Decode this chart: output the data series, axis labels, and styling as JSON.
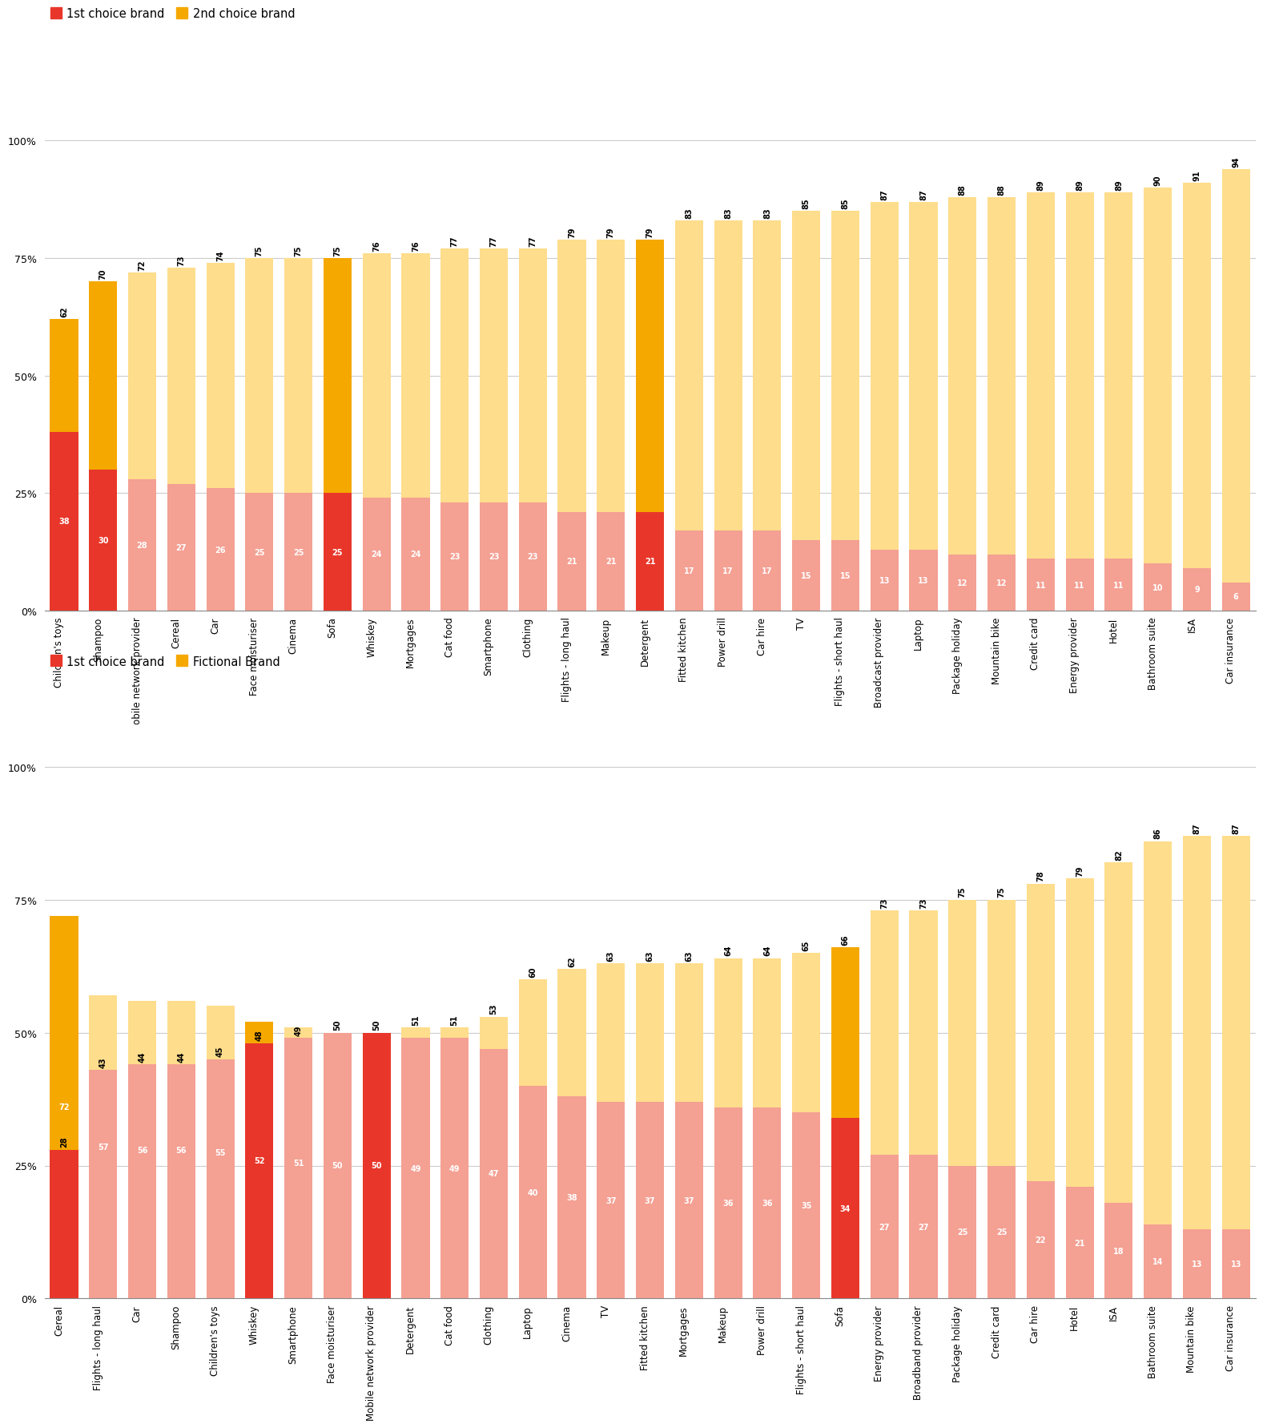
{
  "chart1": {
    "categories": [
      "Children's toys",
      "Shampoo",
      "Mobile network provider",
      "Cereal",
      "Car",
      "Face moisturiser",
      "Cinema",
      "Sofa",
      "Whiskey",
      "Mortgages",
      "Cat food",
      "Smartphone",
      "Clothing",
      "Flights - long haul",
      "Makeup",
      "Detergent",
      "Fitted kitchen",
      "Power drill",
      "Car hire",
      "TV",
      "Flights - short haul",
      "Broadcast provider",
      "Laptop",
      "Package holiday",
      "Mountain bike",
      "Credit card",
      "Energy provider",
      "Hotel",
      "Bathroom suite",
      "ISA",
      "Car insurance"
    ],
    "red_values": [
      38,
      30,
      28,
      27,
      26,
      25,
      25,
      25,
      24,
      24,
      23,
      23,
      23,
      21,
      21,
      21,
      17,
      17,
      17,
      15,
      15,
      13,
      13,
      12,
      12,
      11,
      11,
      11,
      10,
      9,
      6
    ],
    "top_values": [
      62,
      70,
      72,
      73,
      74,
      75,
      75,
      75,
      76,
      76,
      77,
      77,
      77,
      79,
      79,
      79,
      83,
      83,
      83,
      85,
      85,
      87,
      87,
      88,
      88,
      89,
      89,
      89,
      90,
      91,
      94
    ],
    "red_highlight": [
      0,
      1,
      7,
      15
    ],
    "legend1": "1st choice brand",
    "legend2": "2nd choice brand"
  },
  "chart2": {
    "categories": [
      "Cereal",
      "Flights - long haul",
      "Car",
      "Shampoo",
      "Children's toys",
      "Whiskey",
      "Smartphone",
      "Face moisturiser",
      "Mobile network provider",
      "Detergent",
      "Cat food",
      "Clothing",
      "Laptop",
      "Cinema",
      "TV",
      "Fitted kitchen",
      "Mortgages",
      "Makeup",
      "Power drill",
      "Flights - short haul",
      "Sofa",
      "Energy provider",
      "Broadband provider",
      "Package holiday",
      "Credit card",
      "Car hire",
      "Hotel",
      "ISA",
      "Bathroom suite",
      "Mountain bike",
      "Car insurance"
    ],
    "red_values": [
      72,
      57,
      56,
      56,
      55,
      52,
      51,
      50,
      50,
      49,
      49,
      47,
      40,
      38,
      37,
      37,
      37,
      36,
      36,
      35,
      34,
      27,
      27,
      25,
      25,
      22,
      21,
      18,
      14,
      13,
      13
    ],
    "top_values": [
      28,
      43,
      44,
      44,
      45,
      48,
      49,
      50,
      50,
      51,
      51,
      53,
      60,
      62,
      63,
      63,
      63,
      64,
      64,
      65,
      66,
      73,
      73,
      75,
      75,
      78,
      79,
      82,
      86,
      87,
      87
    ],
    "red_highlight": [
      0,
      5,
      8,
      20
    ],
    "legend1": "1st choice brand",
    "legend2": "Fictional Brand"
  },
  "colors": {
    "red_dark": "#E8372A",
    "red_light": "#F4A093",
    "yellow_dark": "#F5A800",
    "yellow_light": "#FEDD8C",
    "background": "#FFFFFF"
  }
}
